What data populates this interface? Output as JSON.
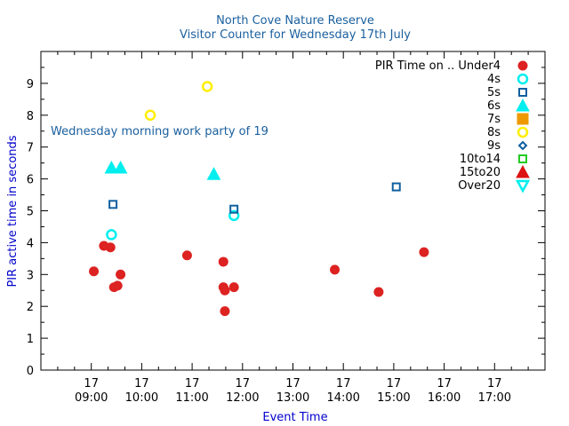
{
  "chart_data": {
    "type": "scatter",
    "title": "North Cove Nature Reserve",
    "subtitle": "Visitor Counter for Wednesday 17th July",
    "xlabel": "Event Time",
    "ylabel": "PIR active time in seconds",
    "xlim": [
      8.0,
      18.0
    ],
    "ylim": [
      0,
      10
    ],
    "y_ticks": [
      0,
      1,
      2,
      3,
      4,
      5,
      6,
      7,
      8,
      9
    ],
    "x_ticks": [
      {
        "value": 9,
        "day": "17",
        "time": "09:00"
      },
      {
        "value": 10,
        "day": "17",
        "time": "10:00"
      },
      {
        "value": 11,
        "day": "17",
        "time": "11:00"
      },
      {
        "value": 12,
        "day": "17",
        "time": "12:00"
      },
      {
        "value": 13,
        "day": "17",
        "time": "13:00"
      },
      {
        "value": 14,
        "day": "17",
        "time": "14:00"
      },
      {
        "value": 15,
        "day": "17",
        "time": "15:00"
      },
      {
        "value": 16,
        "day": "17",
        "time": "16:00"
      },
      {
        "value": 17,
        "day": "17",
        "time": "17:00"
      }
    ],
    "annotation": {
      "text": "Wednesday morning work party of 19",
      "x": 8.17,
      "y": 7.45
    },
    "legend_title": "PIR Time on .. Under4",
    "legend_position": "top-right",
    "series": [
      {
        "name": "Under4",
        "marker": "circle-filled",
        "color": "#dd2222",
        "points": [
          [
            9.05,
            3.1
          ],
          [
            9.25,
            3.9
          ],
          [
            9.38,
            3.85
          ],
          [
            9.45,
            2.6
          ],
          [
            9.52,
            2.65
          ],
          [
            9.58,
            3.0
          ],
          [
            10.9,
            3.6
          ],
          [
            11.62,
            3.4
          ],
          [
            11.62,
            2.6
          ],
          [
            11.65,
            2.5
          ],
          [
            11.65,
            1.85
          ],
          [
            11.83,
            2.6
          ],
          [
            13.83,
            3.15
          ],
          [
            14.7,
            2.45
          ],
          [
            15.6,
            3.7
          ]
        ]
      },
      {
        "name": "4s",
        "marker": "circle-open",
        "color": "#00eeee",
        "points": [
          [
            9.4,
            4.25
          ],
          [
            11.83,
            4.85
          ]
        ]
      },
      {
        "name": "5s",
        "marker": "square-open",
        "color": "#1060a0",
        "points": [
          [
            9.43,
            5.2
          ],
          [
            11.83,
            5.05
          ],
          [
            15.05,
            5.75
          ]
        ]
      },
      {
        "name": "6s",
        "marker": "triangle-filled",
        "color": "#00eeee",
        "points": [
          [
            9.4,
            6.35
          ],
          [
            9.58,
            6.35
          ],
          [
            11.43,
            6.15
          ]
        ]
      },
      {
        "name": "7s",
        "marker": "square-filled",
        "color": "#ee9900",
        "points": []
      },
      {
        "name": "8s",
        "marker": "circle-open",
        "color": "#ffee00",
        "points": [
          [
            10.17,
            8.0
          ],
          [
            11.3,
            8.9
          ]
        ]
      },
      {
        "name": "9s",
        "marker": "diamond-open",
        "color": "#1060a0",
        "points": []
      },
      {
        "name": "10to14",
        "marker": "square-open",
        "color": "#22cc22",
        "points": []
      },
      {
        "name": "15to20",
        "marker": "triangle-filled",
        "color": "#dd1111",
        "points": []
      },
      {
        "name": "Over20",
        "marker": "triangle-down-open",
        "color": "#00eeee",
        "points": []
      }
    ]
  }
}
